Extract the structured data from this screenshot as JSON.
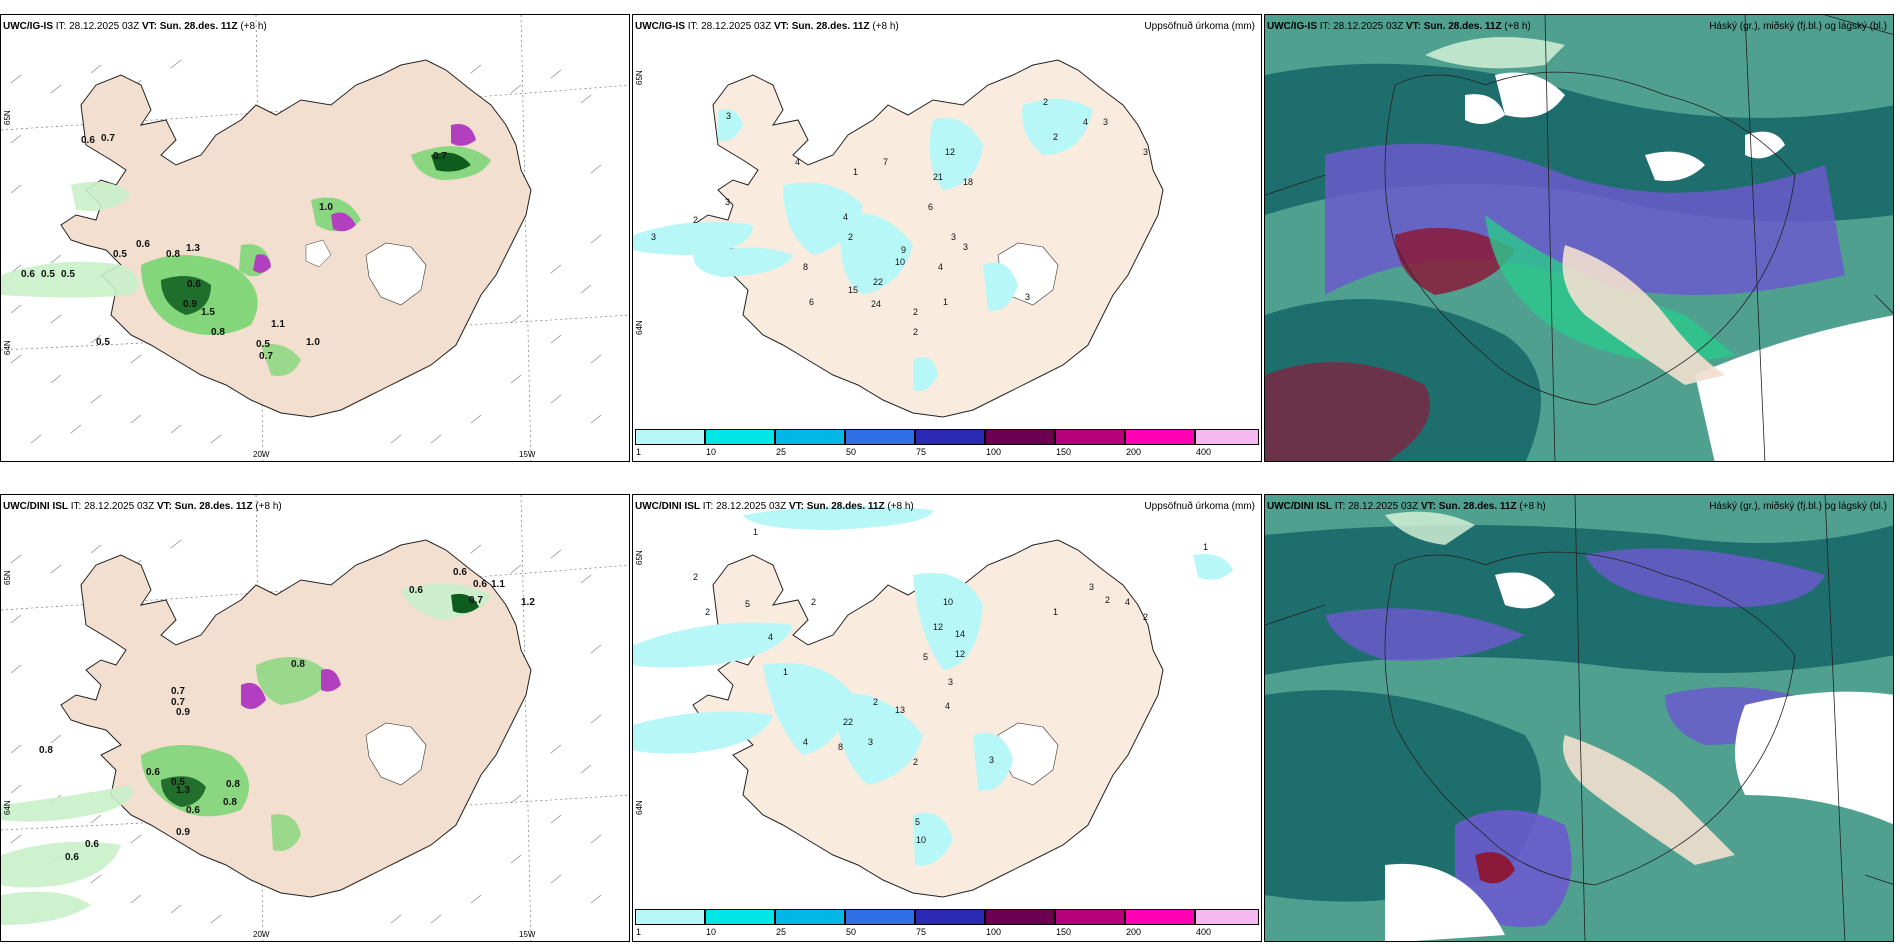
{
  "rows": [
    {
      "model": "UWC/IG-IS",
      "it_label": "IT:",
      "it_value": "28.12.2025 03Z",
      "vt_label": "VT:",
      "vt_value": "Sun. 28.des. 11Z",
      "lead": "(+8 h)",
      "precip_title": "Uppsöfnuð úrkoma (mm)",
      "cloud_title": "Háský (gr.), miðský (fj.bl.) og lágský (bl.)",
      "wind_labels": [
        "0.6",
        "0.7",
        "0.5",
        "0.5",
        "0.6",
        "1.3",
        "0.8",
        "0.6",
        "0.9",
        "1.5",
        "0.8",
        "0.5",
        "0.7",
        "1.0",
        "0.5",
        "0.7",
        "0.6",
        "1.1",
        "1.0",
        "0.5"
      ],
      "precip_labels": [
        "3",
        "2",
        "3",
        "3",
        "4",
        "1",
        "7",
        "12",
        "21",
        "18",
        "6",
        "4",
        "3",
        "2",
        "9",
        "10",
        "4",
        "22",
        "15",
        "24",
        "2",
        "1",
        "8",
        "6",
        "3",
        "2",
        "3",
        "2",
        "4",
        "3",
        "2",
        "3"
      ]
    },
    {
      "model": "UWC/DINI ISL",
      "it_label": "IT:",
      "it_value": "28.12.2025 03Z",
      "vt_label": "VT:",
      "vt_value": "Sun. 28.des. 11Z",
      "lead": "(+8 h)",
      "precip_title": "Uppsöfnuð úrkoma (mm)",
      "cloud_title": "Háský (gr.), miðský (fj.bl.) og lágský (bl.)",
      "wind_labels": [
        "0.6",
        "0.6",
        "0.6",
        "1.1",
        "0.7",
        "1.2",
        "0.8",
        "0.7",
        "0.8",
        "0.6",
        "0.8",
        "1.3",
        "0.6",
        "0.9",
        "0.6",
        "0.9",
        "0.7",
        "0.8",
        "0.6",
        "0.5"
      ],
      "precip_labels": [
        "2",
        "1",
        "2",
        "5",
        "4",
        "2",
        "1",
        "10",
        "12",
        "14",
        "12",
        "5",
        "3",
        "4",
        "2",
        "13",
        "22",
        "3",
        "8",
        "4",
        "2",
        "5",
        "10",
        "3",
        "3",
        "2",
        "4",
        "2",
        "1",
        "1"
      ]
    }
  ],
  "axes": {
    "lon_labels": [
      "20W",
      "15W"
    ],
    "lat_labels": [
      "65N",
      "64N"
    ]
  },
  "colorbar": {
    "ticks": [
      "1",
      "10",
      "25",
      "50",
      "75",
      "100",
      "150",
      "200",
      "400"
    ],
    "colors": [
      "#b8f7f7",
      "#00e6e6",
      "#00b7e6",
      "#2f6fe6",
      "#2a2ab5",
      "#6b0050",
      "#b5007a",
      "#ff00b4",
      "#f5b8f0"
    ]
  },
  "colors": {
    "land": "#f2dfcf",
    "land_cream": "#f9ecdf",
    "wind_green_light": "#c9f0c9",
    "wind_green": "#5fd35f",
    "wind_green_dark": "#0e5c1e",
    "precip_cyan": "#b8f7f7",
    "cloud_high": "#1f6e6e",
    "cloud_mid": "#6a5acd",
    "cloud_low": "#2ac98c",
    "cloud_red": "#8b1a3a"
  }
}
